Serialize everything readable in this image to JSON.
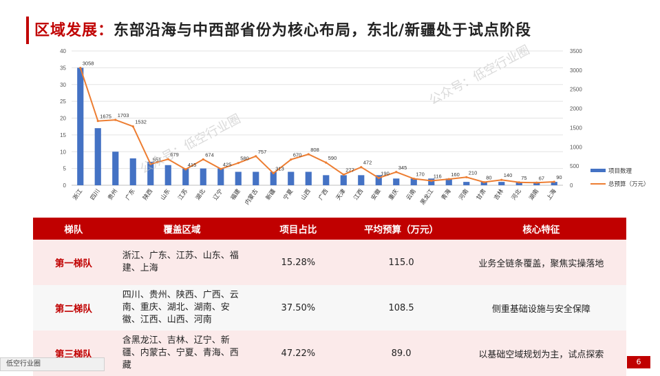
{
  "header": {
    "title_lead": "区域发展：",
    "title_rest": "东部沿海与中西部省份为核心布局，东北/新疆处于试点阶段"
  },
  "watermarks": [
    "公众号：低空行业圈",
    "公众号：低空行业圈"
  ],
  "chart_data": {
    "type": "bar",
    "categories": [
      "浙江",
      "四川",
      "贵州",
      "广东",
      "陕西",
      "山东",
      "江苏",
      "湖北",
      "辽宁",
      "福建",
      "内蒙古",
      "新疆",
      "宁夏",
      "山西",
      "广西",
      "天津",
      "江西",
      "安徽",
      "重庆",
      "云南",
      "黑龙江",
      "青海",
      "河南",
      "甘肃",
      "吉林",
      "河北",
      "湖南",
      "上海"
    ],
    "series": [
      {
        "name": "项目数理",
        "type": "bar",
        "axis": "left",
        "color": "#4472c4",
        "values": [
          35,
          17,
          10,
          8,
          7,
          6,
          5,
          5,
          5,
          4,
          4,
          4,
          4,
          4,
          3,
          3,
          3,
          3,
          2,
          2,
          2,
          2,
          1,
          1,
          1,
          1,
          1,
          1
        ]
      },
      {
        "name": "总预算（万元）",
        "type": "line",
        "axis": "right",
        "color": "#ed7d31",
        "values": [
          3058,
          1675,
          1703,
          1532,
          551,
          679,
          415,
          674,
          425,
          580,
          757,
          313,
          670,
          808,
          590,
          277,
          472,
          190,
          345,
          170,
          116,
          160,
          210,
          80,
          140,
          75,
          67,
          90
        ]
      }
    ],
    "data_labels": [
      "3058",
      "1675",
      "1703",
      "1532",
      "551",
      "679",
      "415",
      "674",
      "425",
      "580",
      "757",
      "313",
      "670",
      "808",
      "590",
      "277",
      "472",
      "190",
      "345",
      "170",
      "116",
      "160",
      "210",
      "80",
      "140",
      "75",
      "67",
      "90"
    ],
    "y_left": {
      "min": 0,
      "max": 40,
      "ticks": [
        "0",
        "5",
        "10",
        "15",
        "20",
        "25",
        "30",
        "35",
        "40"
      ]
    },
    "y_right": {
      "min": 0,
      "max": 3500,
      "ticks": [
        "0",
        "500",
        "1000",
        "1500",
        "2000",
        "2500",
        "3000",
        "3500"
      ]
    },
    "grid": true,
    "legend_position": "right"
  },
  "table": {
    "headers": [
      "梯队",
      "覆盖区域",
      "项目占比",
      "平均预算（万元）",
      "核心特征"
    ],
    "rows": [
      {
        "tier": "第一梯队",
        "regions": [
          "浙江、广东、江苏、山东、福",
          "建、上海"
        ],
        "share": "15.28%",
        "budget": "115.0",
        "feature": "业务全链条覆盖，聚焦实操落地"
      },
      {
        "tier": "第二梯队",
        "regions": [
          "四川、贵州、陕西、广西、云",
          "南、重庆、湖北、湖南、安",
          "徽、江西、山西、河南"
        ],
        "share": "37.50%",
        "budget": "108.5",
        "feature": "侧重基础设施与安全保障"
      },
      {
        "tier": "第三梯队",
        "regions": [
          "含黑龙江、吉林、辽宁、新",
          "疆、内蒙古、宁夏、青海、西",
          "藏"
        ],
        "share": "47.22%",
        "budget": "89.0",
        "feature": "以基础空域规划为主，试点探索"
      }
    ]
  },
  "footer": {
    "tab_label": "低空行业圈",
    "page_number": "6"
  }
}
